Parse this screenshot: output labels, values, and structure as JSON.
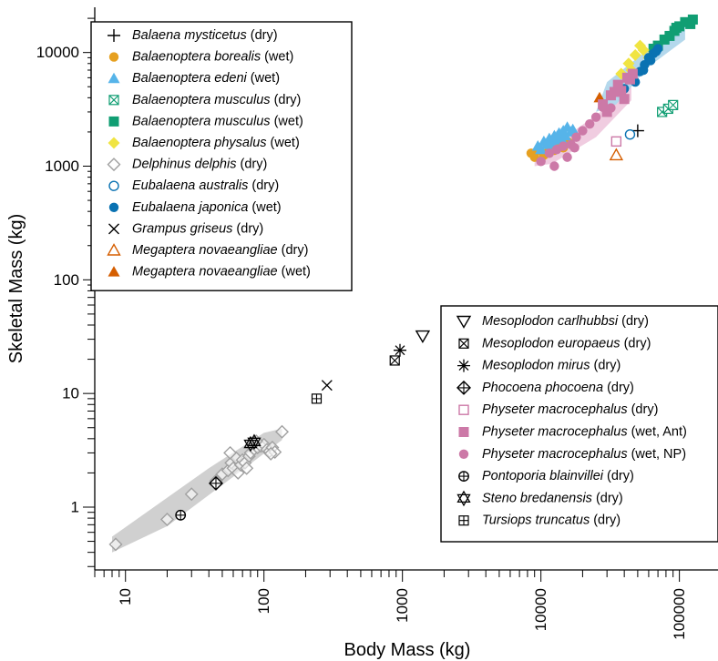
{
  "chart_data": {
    "type": "scatter",
    "scale": "log-log",
    "title": "",
    "xlabel": "Body Mass (kg)",
    "ylabel": "Skeletal Mass (kg)",
    "xlim": [
      6,
      190000
    ],
    "ylim": [
      0.28,
      25000
    ],
    "x_ticks": [
      10,
      100,
      1000,
      10000,
      100000
    ],
    "x_tick_labels": [
      "10",
      "100",
      "1000",
      "10000",
      "100000"
    ],
    "y_ticks": [
      1,
      10,
      100,
      1000,
      10000
    ],
    "y_tick_labels": [
      "1",
      "10",
      "100",
      "1000",
      "10000"
    ],
    "grid": false,
    "legend_left": {
      "placement": "top-left",
      "entries": [
        {
          "species": "Balaena mysticetus",
          "cond": " (dry)",
          "marker": "plus",
          "color": "#000000"
        },
        {
          "species": "Balaenoptera borealis",
          "cond": " (wet)",
          "marker": "circle-filled",
          "color": "#e6a020"
        },
        {
          "species": "Balaenoptera edeni",
          "cond": " (wet)",
          "marker": "triangle-filled",
          "color": "#56b4e9"
        },
        {
          "species": "Balaenoptera musculus",
          "cond": " (dry)",
          "marker": "square-x",
          "color": "#109e73"
        },
        {
          "species": "Balaenoptera musculus",
          "cond": " (wet)",
          "marker": "square-filled",
          "color": "#109e73"
        },
        {
          "species": "Balaenoptera physalus",
          "cond": " (wet)",
          "marker": "diamond-filled",
          "color": "#f0e442"
        },
        {
          "species": "Delphinus delphis",
          "cond": " (dry)",
          "marker": "diamond-open",
          "color": "#a0a0a0"
        },
        {
          "species": "Eubalaena australis",
          "cond": " (dry)",
          "marker": "circle-open",
          "color": "#0a72b2"
        },
        {
          "species": "Eubalaena japonica",
          "cond": " (wet)",
          "marker": "circle-filled",
          "color": "#0a72b2"
        },
        {
          "species": "Grampus griseus",
          "cond": " (dry)",
          "marker": "x",
          "color": "#000000"
        },
        {
          "species": "Megaptera novaeangliae",
          "cond": " (dry)",
          "marker": "triangle-open",
          "color": "#d55e00"
        },
        {
          "species": "Megaptera novaeangliae",
          "cond": " (wet)",
          "marker": "triangle-filled",
          "color": "#d55e00"
        }
      ]
    },
    "legend_right": {
      "placement": "bottom-right",
      "entries": [
        {
          "species": "Mesoplodon carlhubbsi",
          "cond": " (dry)",
          "marker": "triangle-down-open",
          "color": "#000000"
        },
        {
          "species": "Mesoplodon europaeus",
          "cond": " (dry)",
          "marker": "square-x",
          "color": "#000000"
        },
        {
          "species": "Mesoplodon mirus",
          "cond": " (dry)",
          "marker": "asterisk",
          "color": "#000000"
        },
        {
          "species": "Phocoena phocoena",
          "cond": " (dry)",
          "marker": "diamond-plus",
          "color": "#000000"
        },
        {
          "species": "Physeter macrocephalus",
          "cond": " (dry)",
          "marker": "square-open",
          "color": "#cc79a7"
        },
        {
          "species": "Physeter macrocephalus",
          "cond": " (wet, Ant)",
          "marker": "square-filled",
          "color": "#cc79a7"
        },
        {
          "species": "Physeter macrocephalus",
          "cond": " (wet, NP)",
          "marker": "circle-filled",
          "color": "#cc79a7"
        },
        {
          "species": "Pontoporia blainvillei",
          "cond": " (dry)",
          "marker": "circle-plus",
          "color": "#000000"
        },
        {
          "species": "Steno bredanensis",
          "cond": " (dry)",
          "marker": "star-of-david",
          "color": "#000000"
        },
        {
          "species": "Tursiops truncatus",
          "cond": " (dry)",
          "marker": "square-plus",
          "color": "#000000"
        }
      ]
    },
    "confidence_bands": [
      {
        "name": "small-odontocetes",
        "color": "#d0d0d0",
        "upper": [
          [
            8,
            0.55
          ],
          [
            40,
            2.2
          ],
          [
            100,
            4.5
          ],
          [
            135,
            4.9
          ]
        ],
        "lower": [
          [
            135,
            3.9
          ],
          [
            60,
            1.85
          ],
          [
            20,
            0.68
          ],
          [
            8,
            0.4
          ]
        ]
      },
      {
        "name": "physeter-np",
        "color": "#f0cce0",
        "upper": [
          [
            9000,
            1300
          ],
          [
            15000,
            1800
          ],
          [
            30000,
            3300
          ],
          [
            45000,
            5000
          ]
        ],
        "lower": [
          [
            45000,
            3800
          ],
          [
            25000,
            1800
          ],
          [
            12000,
            1050
          ],
          [
            9000,
            1000
          ]
        ]
      },
      {
        "name": "edeni",
        "color": "#bfe0f5",
        "upper": [
          [
            10000,
            1650
          ],
          [
            15000,
            2300
          ]
        ],
        "lower": [
          [
            15000,
            1600
          ],
          [
            10000,
            1100
          ]
        ]
      },
      {
        "name": "baleen-upper",
        "color": "#b4d8ec",
        "upper": [
          [
            30000,
            5500
          ],
          [
            50000,
            9000
          ],
          [
            80000,
            14000
          ],
          [
            110000,
            17500
          ]
        ],
        "lower": [
          [
            110000,
            13000
          ],
          [
            60000,
            7500
          ],
          [
            35000,
            3500
          ],
          [
            25000,
            3000
          ]
        ]
      }
    ],
    "series": [
      {
        "label": "Balaena mysticetus (dry)",
        "marker": "plus",
        "color": "#000000",
        "points": [
          [
            50000,
            2050
          ]
        ]
      },
      {
        "label": "Balaenoptera borealis (wet)",
        "marker": "circle-filled",
        "color": "#e6a020",
        "points": [
          [
            8500,
            1300
          ],
          [
            9500,
            1380
          ],
          [
            10500,
            1250
          ],
          [
            11500,
            1450
          ],
          [
            12500,
            1380
          ],
          [
            13500,
            1550
          ],
          [
            14500,
            1450
          ],
          [
            15500,
            1650
          ],
          [
            9000,
            1200
          ],
          [
            11000,
            1300
          ],
          [
            13000,
            1500
          ],
          [
            16000,
            1600
          ]
        ]
      },
      {
        "label": "Balaenoptera edeni (wet)",
        "marker": "triangle-filled",
        "color": "#56b4e9",
        "points": [
          [
            9500,
            1500
          ],
          [
            10500,
            1650
          ],
          [
            11500,
            1750
          ],
          [
            12000,
            1600
          ],
          [
            12500,
            1850
          ],
          [
            13000,
            1700
          ],
          [
            13500,
            1950
          ],
          [
            14000,
            1750
          ],
          [
            14500,
            2050
          ],
          [
            15000,
            1850
          ],
          [
            15500,
            2200
          ],
          [
            16500,
            2000
          ],
          [
            10000,
            1400
          ],
          [
            11000,
            1550
          ],
          [
            17000,
            2100
          ]
        ]
      },
      {
        "label": "Balaenoptera musculus (dry)",
        "marker": "square-x",
        "color": "#109e73",
        "points": [
          [
            75000,
            3000
          ],
          [
            83000,
            3200
          ],
          [
            90000,
            3450
          ]
        ]
      },
      {
        "label": "Balaenoptera musculus (wet)",
        "marker": "square-filled",
        "color": "#109e73",
        "points": [
          [
            70000,
            11500
          ],
          [
            78000,
            13000
          ],
          [
            85000,
            14000
          ],
          [
            92000,
            15500
          ],
          [
            100000,
            17000
          ],
          [
            110000,
            18500
          ],
          [
            120000,
            17800
          ],
          [
            125000,
            19500
          ],
          [
            65000,
            10800
          ],
          [
            95000,
            16500
          ]
        ]
      },
      {
        "label": "Balaenoptera physalus (wet)",
        "marker": "diamond-filled",
        "color": "#f0e442",
        "points": [
          [
            38000,
            6500
          ],
          [
            43000,
            8000
          ],
          [
            48000,
            9500
          ],
          [
            55000,
            10500
          ],
          [
            60000,
            9000
          ],
          [
            52000,
            11500
          ],
          [
            45000,
            7000
          ]
        ]
      },
      {
        "label": "Delphinus delphis (dry)",
        "marker": "diamond-open",
        "color": "#a0a0a0",
        "points": [
          [
            8.5,
            0.47
          ],
          [
            20,
            0.78
          ],
          [
            30,
            1.3
          ],
          [
            45,
            1.7
          ],
          [
            50,
            1.95
          ],
          [
            55,
            2.1
          ],
          [
            58,
            2.45
          ],
          [
            60,
            2.2
          ],
          [
            63,
            2.7
          ],
          [
            65,
            2.0
          ],
          [
            68,
            2.35
          ],
          [
            70,
            2.6
          ],
          [
            73,
            2.45
          ],
          [
            75,
            2.2
          ],
          [
            78,
            2.8
          ],
          [
            80,
            3.0
          ],
          [
            85,
            3.25
          ],
          [
            90,
            3.35
          ],
          [
            95,
            3.45
          ],
          [
            100,
            3.55
          ],
          [
            105,
            3.2
          ],
          [
            110,
            3.1
          ],
          [
            115,
            3.35
          ],
          [
            120,
            3.05
          ],
          [
            135,
            4.6
          ],
          [
            57,
            3.0
          ],
          [
            88,
            3.8
          ],
          [
            112,
            2.95
          ]
        ]
      },
      {
        "label": "Eubalaena australis (dry)",
        "marker": "circle-open",
        "color": "#0a72b2",
        "points": [
          [
            44000,
            1900
          ]
        ]
      },
      {
        "label": "Eubalaena japonica (wet)",
        "marker": "circle-filled",
        "color": "#0a72b2",
        "points": [
          [
            40000,
            4800
          ],
          [
            48000,
            5500
          ],
          [
            52000,
            6800
          ],
          [
            56000,
            7800
          ],
          [
            60000,
            9000
          ],
          [
            65000,
            9800
          ],
          [
            70000,
            10800
          ],
          [
            55000,
            7000
          ],
          [
            62000,
            8500
          ],
          [
            68000,
            10200
          ]
        ]
      },
      {
        "label": "Grampus griseus (dry)",
        "marker": "x",
        "color": "#000000",
        "points": [
          [
            285,
            11.8
          ]
        ]
      },
      {
        "label": "Megaptera novaeangliae (dry)",
        "marker": "triangle-open",
        "color": "#d55e00",
        "points": [
          [
            35000,
            1250
          ]
        ]
      },
      {
        "label": "Megaptera novaeangliae (wet)",
        "marker": "triangle-filled",
        "color": "#d55e00",
        "points": [
          [
            26500,
            4000
          ]
        ]
      },
      {
        "label": "Mesoplodon carlhubbsi (dry)",
        "marker": "triangle-down-open",
        "color": "#000000",
        "points": [
          [
            1400,
            32
          ]
        ]
      },
      {
        "label": "Mesoplodon europaeus (dry)",
        "marker": "square-x",
        "color": "#000000",
        "points": [
          [
            880,
            19.5
          ]
        ]
      },
      {
        "label": "Mesoplodon mirus (dry)",
        "marker": "asterisk",
        "color": "#000000",
        "points": [
          [
            960,
            24
          ]
        ]
      },
      {
        "label": "Phocoena phocoena (dry)",
        "marker": "diamond-plus",
        "color": "#000000",
        "points": [
          [
            45,
            1.62
          ]
        ]
      },
      {
        "label": "Physeter macrocephalus (dry)",
        "marker": "square-open",
        "color": "#cc79a7",
        "points": [
          [
            35000,
            1650
          ]
        ]
      },
      {
        "label": "Physeter macrocephalus (wet, Ant)",
        "marker": "square-filled",
        "color": "#cc79a7",
        "points": [
          [
            28000,
            3500
          ],
          [
            32000,
            4200
          ],
          [
            36000,
            5200
          ],
          [
            38000,
            4600
          ],
          [
            42000,
            6000
          ],
          [
            40000,
            3900
          ],
          [
            46000,
            6500
          ],
          [
            30000,
            3000
          ],
          [
            34000,
            4500
          ],
          [
            44000,
            5800
          ]
        ]
      },
      {
        "label": "Physeter macrocephalus (wet, NP)",
        "marker": "circle-filled",
        "color": "#cc79a7",
        "points": [
          [
            10000,
            1100
          ],
          [
            11500,
            1300
          ],
          [
            13000,
            1400
          ],
          [
            14500,
            1500
          ],
          [
            16500,
            1550
          ],
          [
            18000,
            1800
          ],
          [
            20000,
            2050
          ],
          [
            22500,
            2350
          ],
          [
            25000,
            2700
          ],
          [
            28000,
            3300
          ],
          [
            32000,
            3250
          ],
          [
            15500,
            1200
          ],
          [
            12500,
            1000
          ],
          [
            17500,
            1450
          ]
        ]
      },
      {
        "label": "Pontoporia blainvillei (dry)",
        "marker": "circle-plus",
        "color": "#000000",
        "points": [
          [
            25,
            0.85
          ]
        ]
      },
      {
        "label": "Steno bredanensis (dry)",
        "marker": "star-of-david",
        "color": "#000000",
        "points": [
          [
            80,
            3.6
          ],
          [
            85,
            3.75
          ]
        ]
      },
      {
        "label": "Tursiops truncatus (dry)",
        "marker": "square-plus",
        "color": "#000000",
        "points": [
          [
            240,
            9
          ]
        ]
      }
    ]
  }
}
